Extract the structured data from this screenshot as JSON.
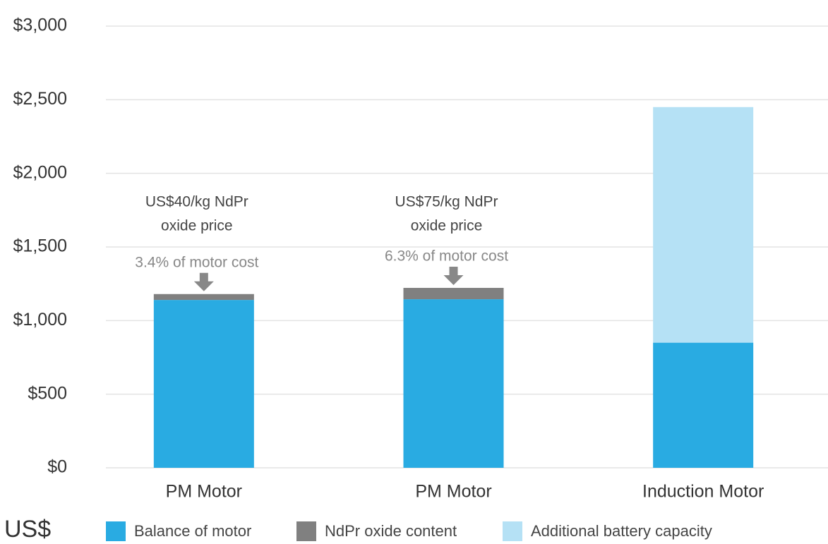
{
  "chart_data": {
    "type": "stacked_bar",
    "y_label": "US$",
    "categories": [
      "PM Motor",
      "PM Motor",
      "Induction Motor"
    ],
    "series": [
      {
        "name": "Balance of motor",
        "color": "#29abe2",
        "values": [
          1140,
          1145,
          850
        ]
      },
      {
        "name": "NdPr oxide content",
        "color": "#808080",
        "values": [
          40,
          77,
          null
        ]
      },
      {
        "name": "Additional battery capacity",
        "color": "#b5e1f5",
        "values": [
          null,
          null,
          1600
        ]
      }
    ],
    "annotations": [
      {
        "lines": [
          "US$40/kg NdPr",
          "oxide price"
        ],
        "note": "3.4% of motor cost"
      },
      {
        "lines": [
          "US$75/kg NdPr",
          "oxide price"
        ],
        "note": "6.3% of motor cost"
      }
    ],
    "ylim": [
      0,
      3000
    ],
    "yticks": [
      {
        "value": 0,
        "label": "$0"
      },
      {
        "value": 500,
        "label": "$500"
      },
      {
        "value": 1000,
        "label": "$1,000"
      },
      {
        "value": 1500,
        "label": "$1,500"
      },
      {
        "value": 2000,
        "label": "$2,000"
      },
      {
        "value": 2500,
        "label": "$2,500"
      },
      {
        "value": 3000,
        "label": "$3,000"
      }
    ],
    "grid": true
  }
}
